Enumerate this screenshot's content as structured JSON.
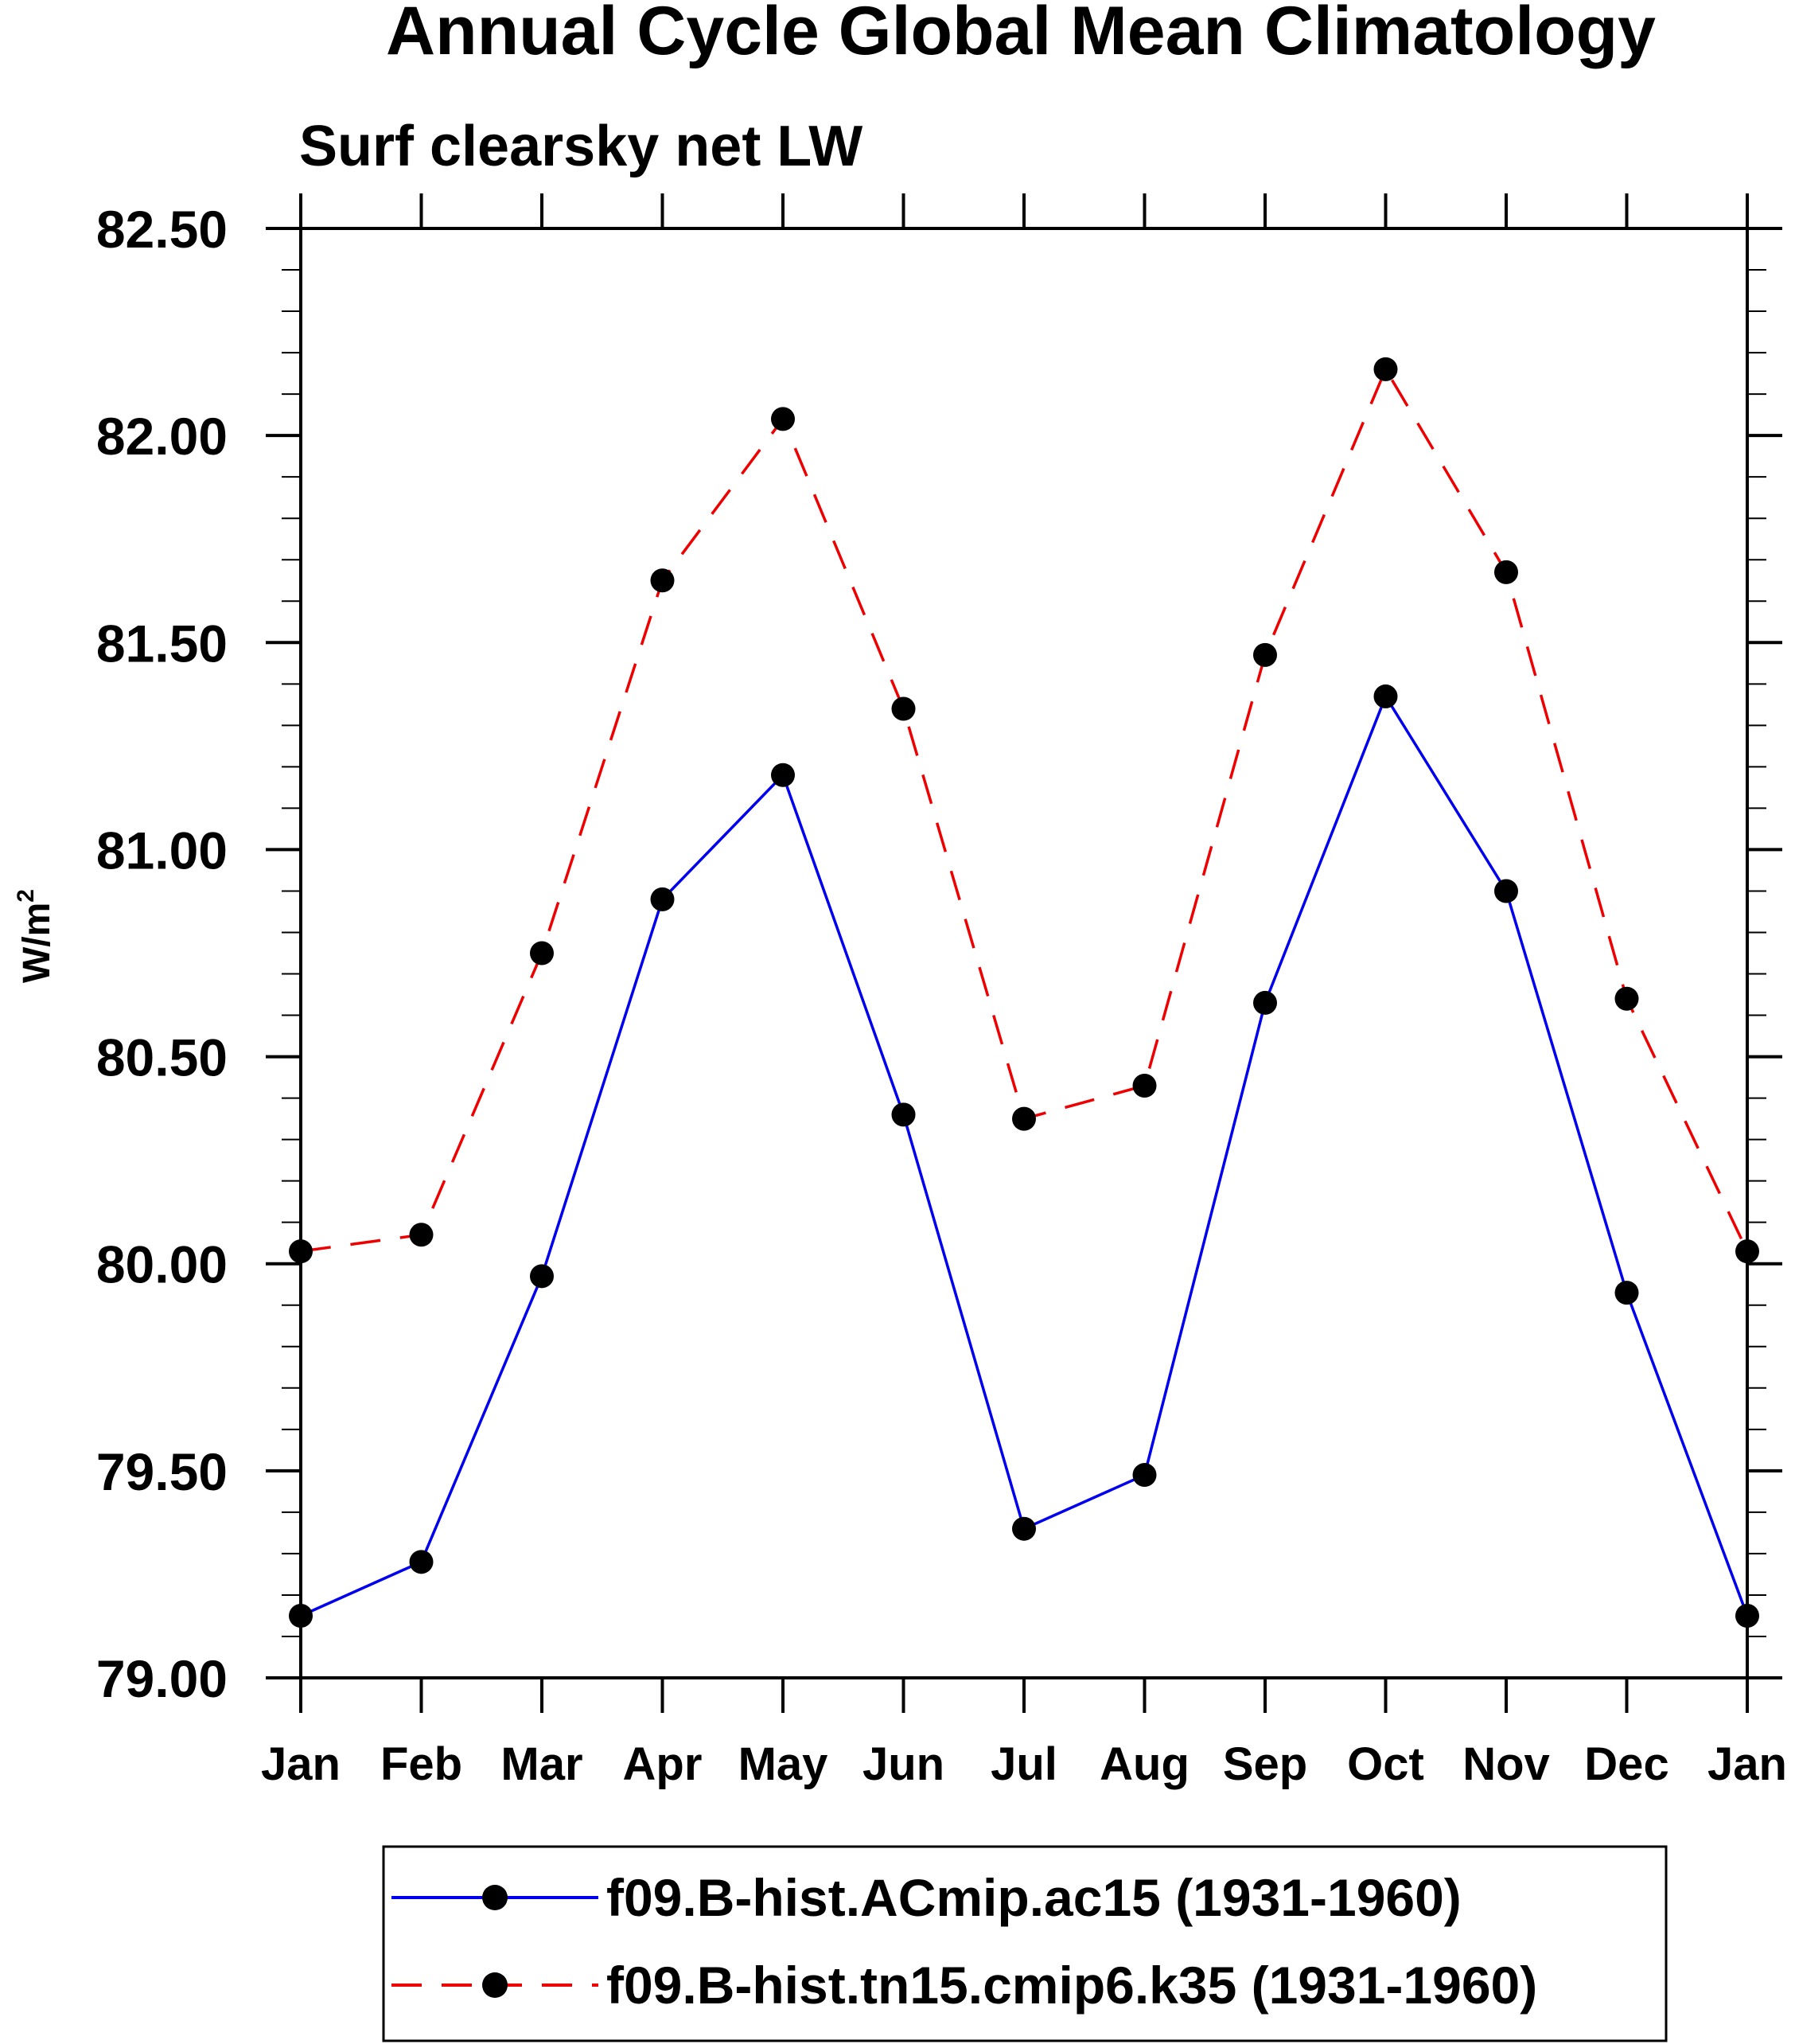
{
  "chart_data": {
    "type": "line",
    "title": "Annual Cycle Global Mean Climatology",
    "subtitle": "Surf clearsky net LW",
    "ylabel": "W/m",
    "ylabel_sup": "2",
    "xlabel": "",
    "categories": [
      "Jan",
      "Feb",
      "Mar",
      "Apr",
      "May",
      "Jun",
      "Jul",
      "Aug",
      "Sep",
      "Oct",
      "Nov",
      "Dec",
      "Jan"
    ],
    "ylim": [
      79.0,
      82.5
    ],
    "yticks": [
      "79.00",
      "79.50",
      "80.00",
      "80.50",
      "81.00",
      "81.50",
      "82.00",
      "82.50"
    ],
    "grid": false,
    "legend_position": "bottom",
    "series": [
      {
        "name": "f09.B-hist.ACmip.ac15 (1931-1960)",
        "color": "#0000ee",
        "style": "solid",
        "marker": "circle",
        "values": [
          79.15,
          79.28,
          79.97,
          80.88,
          81.18,
          80.36,
          79.36,
          79.49,
          80.63,
          81.37,
          80.9,
          79.93,
          79.15
        ]
      },
      {
        "name": "f09.B-hist.tn15.cmip6.k35 (1931-1960)",
        "color": "#ee0000",
        "style": "dashed",
        "marker": "circle",
        "values": [
          80.03,
          80.07,
          80.75,
          81.65,
          82.04,
          81.34,
          80.35,
          80.43,
          81.47,
          82.16,
          81.67,
          80.64,
          80.03
        ]
      }
    ]
  }
}
